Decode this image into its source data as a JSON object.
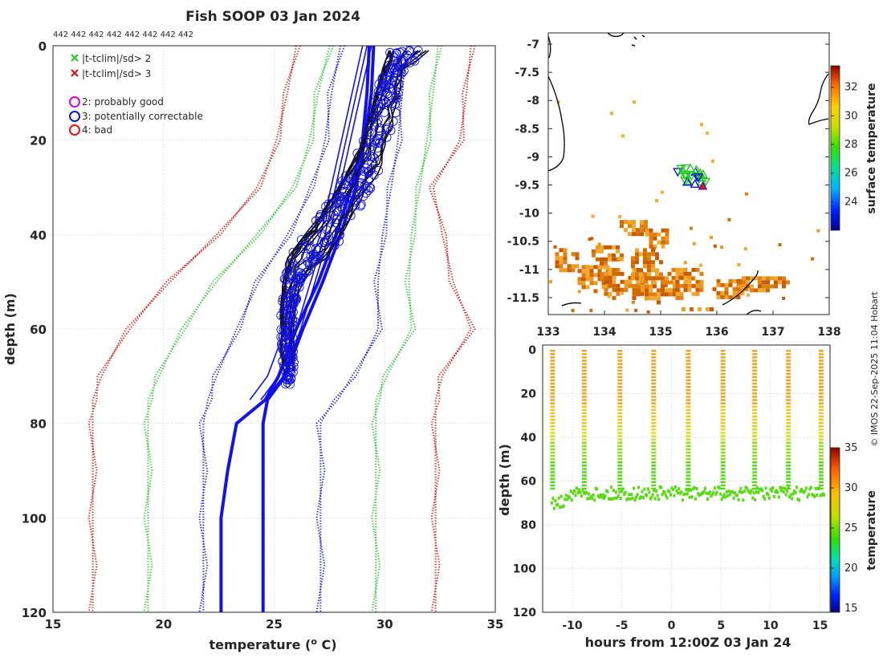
{
  "figure_title": "Fish SOOP 03 Jan 2024",
  "profile_counts": "442 442 442 442 442 442 442 442",
  "credit": "© IMOS 22-Sep-2025 11:04 Hobart",
  "colors": {
    "clim_sd2": "#22cc22",
    "clim_sd3": "#dd1111",
    "clim_mean": "#1111ee",
    "profile": "#111111",
    "flag_good": "#dd00dd",
    "flag_correctable": "#1111dd",
    "flag_bad": "#ee1111"
  },
  "legend": {
    "sd2": "|t-tclim|/sd> 2",
    "sd3": "|t-tclim|/sd> 3",
    "flag2": "2: probably good",
    "flag3": "3: potentially correctable",
    "flag4": "4: bad"
  },
  "chart_data": [
    {
      "id": "profiles",
      "type": "line",
      "title": "Fish SOOP 03 Jan 2024",
      "xlabel": "temperature (o C)",
      "ylabel": "depth (m)",
      "xlim": [
        15,
        35
      ],
      "ylim": [
        0,
        120
      ],
      "y_reversed": true,
      "xticks": [
        15,
        20,
        25,
        30,
        35
      ],
      "yticks": [
        0,
        20,
        40,
        60,
        80,
        100,
        120
      ],
      "grid": true,
      "legend_position": "top-left",
      "clim_depths": [
        0,
        10,
        20,
        30,
        40,
        50,
        60,
        70,
        75,
        80,
        90,
        100,
        110,
        120
      ],
      "climatology": [
        {
          "name": "mean",
          "color": "blue",
          "style": "solid",
          "values": [
            29.3,
            29.2,
            29.0,
            28.5,
            27.8,
            27.0,
            26.0,
            25.2,
            24.6,
            23.3,
            22.9,
            22.6,
            22.6,
            22.6
          ]
        },
        {
          "name": "mean",
          "color": "blue",
          "style": "solid",
          "values": [
            29.5,
            29.4,
            29.1,
            28.7,
            28.0,
            27.2,
            26.3,
            25.5,
            24.7,
            24.5,
            24.5,
            24.5,
            24.5,
            24.5
          ]
        },
        {
          "name": "-1sd",
          "color": "blue",
          "style": "dotted",
          "values": [
            28.0,
            27.6,
            27.3,
            26.8,
            25.6,
            24.3,
            23.3,
            22.4,
            22.0,
            21.8,
            21.8,
            21.8,
            21.8,
            21.8
          ]
        },
        {
          "name": "+1sd",
          "color": "blue",
          "style": "dotted",
          "values": [
            31.0,
            30.8,
            30.6,
            30.3,
            29.9,
            29.7,
            29.7,
            28.7,
            27.7,
            27.1,
            27.1,
            27.1,
            27.1,
            27.1
          ]
        },
        {
          "name": "-2sd",
          "color": "green",
          "style": "dotted",
          "values": [
            27.5,
            27.0,
            26.6,
            26.0,
            24.2,
            22.4,
            20.8,
            19.8,
            19.3,
            19.3,
            19.3,
            19.3,
            19.3,
            19.3
          ]
        },
        {
          "name": "+2sd",
          "color": "green",
          "style": "dotted",
          "values": [
            32.4,
            32.2,
            31.9,
            31.6,
            31.2,
            31.1,
            31.2,
            30.1,
            29.6,
            29.6,
            29.6,
            29.6,
            29.6,
            29.6
          ]
        },
        {
          "name": "-3sd",
          "color": "red",
          "style": "dotted",
          "values": [
            26.0,
            25.6,
            25.1,
            24.4,
            22.4,
            20.3,
            18.3,
            17.2,
            16.8,
            16.8,
            16.8,
            16.8,
            16.8,
            16.8
          ]
        },
        {
          "name": "+3sd",
          "color": "red",
          "style": "dotted",
          "values": [
            33.9,
            33.7,
            33.4,
            32.2,
            32.6,
            33.1,
            33.9,
            32.6,
            32.3,
            32.3,
            32.3,
            32.3,
            32.3,
            32.3
          ]
        }
      ],
      "observed_profile_envelope": {
        "depths": [
          1,
          5,
          10,
          15,
          20,
          25,
          30,
          35,
          40,
          45,
          50,
          55,
          60,
          65,
          70
        ],
        "t_low": [
          30.2,
          29.9,
          29.6,
          29.3,
          29.0,
          28.5,
          27.9,
          27.2,
          26.4,
          25.6,
          25.4,
          25.3,
          25.3,
          25.3,
          25.5
        ],
        "t_high": [
          32.0,
          31.0,
          30.7,
          30.5,
          30.2,
          29.9,
          29.4,
          28.8,
          28.2,
          27.4,
          26.2,
          26.0,
          25.9,
          25.9,
          25.9
        ]
      }
    },
    {
      "id": "map",
      "type": "heatmap",
      "xlim": [
        133,
        138
      ],
      "ylim": [
        -11.8,
        -6.8
      ],
      "xticks": [
        133,
        134,
        135,
        136,
        137,
        138
      ],
      "yticks": [
        -7,
        -7.5,
        -8,
        -8.5,
        -9,
        -9.5,
        -10,
        -10.5,
        -11,
        -11.5
      ],
      "colorbar": {
        "label": "surface temperature",
        "range": [
          22,
          33.5
        ],
        "ticks": [
          24,
          26,
          28,
          30,
          32
        ]
      },
      "profile_cluster": {
        "lon": [
          135.3,
          135.8
        ],
        "lat": [
          -9.5,
          -9.2
        ]
      }
    },
    {
      "id": "timeseries",
      "type": "scatter",
      "xlabel": "hours from 12:00Z 03 Jan 24",
      "ylabel": "depth (m)",
      "xlim": [
        -13,
        16
      ],
      "ylim": [
        0,
        120
      ],
      "y_reversed": true,
      "xticks": [
        -10,
        -5,
        0,
        5,
        10,
        15
      ],
      "yticks": [
        0,
        20,
        40,
        60,
        80,
        100,
        120
      ],
      "colorbar": {
        "label": "temperature",
        "range": [
          14.5,
          35
        ],
        "ticks": [
          15,
          20,
          25,
          30,
          35
        ]
      },
      "cast_hours": [
        -12,
        -8.8,
        -5.2,
        -1.8,
        1.7,
        5.2,
        8.4,
        11.8,
        15.1
      ],
      "bottom_depth_m": 65
    }
  ]
}
